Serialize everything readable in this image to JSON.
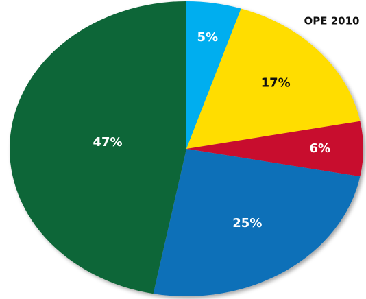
{
  "chart_data": {
    "type": "pie",
    "title": "OPE 2010",
    "values": [
      5,
      17,
      6,
      25,
      47
    ],
    "value_labels": [
      "5%",
      "17%",
      "6%",
      "25%",
      "47%"
    ],
    "colors": [
      "#00aeef",
      "#ffdd00",
      "#c8102e",
      "#1170b8",
      "#0f6637"
    ]
  }
}
